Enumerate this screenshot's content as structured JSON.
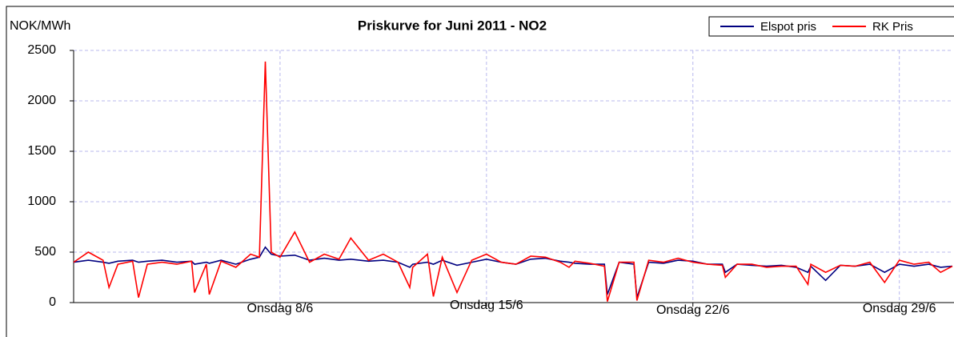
{
  "chart_data": {
    "type": "line",
    "title": "Priskurve for Juni 2011 - NO2",
    "ylabel": "NOK/MWh",
    "x": [
      0,
      0.5,
      1,
      1.2,
      1.5,
      2,
      2.2,
      2.5,
      3,
      3.5,
      4,
      4.1,
      4.5,
      4.6,
      5,
      5.5,
      6,
      6.3,
      6.5,
      6.7,
      7,
      7.5,
      8,
      8.5,
      9,
      9.4,
      10,
      10.5,
      11,
      11.4,
      11.5,
      12,
      12.2,
      12.5,
      13,
      13.5,
      14,
      14.5,
      15,
      15.5,
      16,
      16.5,
      16.8,
      17,
      17.5,
      18,
      18.1,
      18.5,
      19,
      19.1,
      19.5,
      20,
      20.5,
      21,
      21.5,
      22,
      22.1,
      22.5,
      23,
      23.5,
      24,
      24.5,
      24.9,
      25,
      25.5,
      26,
      26.5,
      27,
      27.5,
      28,
      28.5,
      29,
      29.4,
      29.8
    ],
    "series": [
      {
        "name": "Elspot pris",
        "color": "#000080",
        "values": [
          400,
          420,
          400,
          390,
          410,
          420,
          400,
          410,
          420,
          400,
          410,
          380,
          400,
          390,
          420,
          380,
          430,
          450,
          550,
          480,
          460,
          470,
          420,
          440,
          420,
          430,
          410,
          420,
          400,
          350,
          380,
          400,
          380,
          420,
          370,
          400,
          430,
          400,
          380,
          430,
          440,
          410,
          400,
          390,
          380,
          380,
          80,
          400,
          380,
          50,
          400,
          390,
          420,
          410,
          380,
          380,
          300,
          380,
          370,
          360,
          370,
          350,
          300,
          360,
          220,
          370,
          360,
          380,
          300,
          380,
          360,
          380,
          350,
          360
        ]
      },
      {
        "name": "RK Pris",
        "color": "#ff0000",
        "values": [
          400,
          500,
          420,
          150,
          380,
          410,
          50,
          380,
          400,
          380,
          410,
          100,
          380,
          80,
          410,
          350,
          480,
          450,
          2390,
          500,
          450,
          700,
          400,
          480,
          430,
          640,
          420,
          480,
          400,
          150,
          350,
          480,
          60,
          450,
          100,
          420,
          480,
          400,
          380,
          460,
          450,
          400,
          350,
          410,
          390,
          360,
          10,
          400,
          400,
          20,
          420,
          400,
          440,
          400,
          380,
          370,
          250,
          380,
          380,
          350,
          360,
          360,
          180,
          380,
          300,
          370,
          360,
          400,
          200,
          420,
          380,
          400,
          300,
          360
        ]
      }
    ],
    "xlim": [
      0,
      29.8
    ],
    "xticks": [
      {
        "value": 7,
        "label": "Onsdag 8/6"
      },
      {
        "value": 14,
        "label": "Onsdag 15/6"
      },
      {
        "value": 21,
        "label": "Onsdag 22/6"
      },
      {
        "value": 28,
        "label": "Onsdag 29/6"
      }
    ],
    "ylim": [
      0,
      2500
    ],
    "yticks": [
      0,
      500,
      1000,
      1500,
      2000,
      2500
    ],
    "grid": true,
    "legend": "top-right"
  }
}
